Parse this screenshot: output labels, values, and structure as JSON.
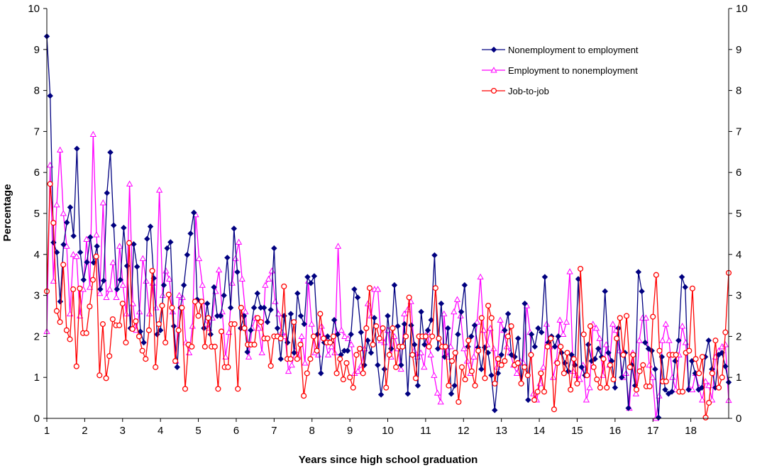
{
  "chart_data": {
    "type": "line",
    "title": "",
    "xlabel": "Years since high school graduation",
    "ylabel": "Percentage",
    "xlim": [
      1,
      19
    ],
    "ylim": [
      0,
      10
    ],
    "x_ticks": [
      "1",
      "2",
      "3",
      "4",
      "5",
      "6",
      "7",
      "8",
      "9",
      "10",
      "11",
      "12",
      "13",
      "14",
      "15",
      "16",
      "17",
      "18"
    ],
    "y_ticks": [
      "0",
      "1",
      "2",
      "3",
      "4",
      "5",
      "6",
      "7",
      "8",
      "9",
      "10"
    ],
    "grid": false,
    "legend_position": "top-right",
    "series": [
      {
        "name": "Nonemployment to employment",
        "color": "#000080",
        "marker": "diamond",
        "values": [
          9.32,
          7.87,
          4.29,
          4.05,
          2.85,
          4.24,
          4.78,
          5.15,
          4.45,
          6.58,
          4.05,
          3.38,
          3.81,
          4.42,
          3.8,
          4.2,
          3.15,
          3.36,
          5.5,
          6.49,
          4.71,
          3.15,
          3.38,
          4.65,
          3.72,
          2.2,
          4.25,
          3.7,
          2.12,
          1.85,
          4.38,
          4.68,
          3.42,
          2.05,
          2.15,
          3.25,
          4.15,
          4.3,
          2.25,
          1.25,
          2.7,
          3.25,
          3.99,
          4.51,
          5.02,
          2.9,
          2.85,
          2.2,
          2.8,
          2.05,
          3.2,
          2.5,
          2.5,
          3.0,
          3.92,
          2.7,
          4.63,
          3.57,
          2.2,
          2.5,
          1.62,
          2.15,
          2.7,
          3.05,
          2.7,
          2.7,
          2.35,
          2.65,
          4.15,
          2.2,
          1.45,
          2.5,
          1.85,
          2.55,
          1.6,
          3.05,
          2.5,
          2.3,
          3.45,
          3.3,
          3.47,
          2.05,
          1.1,
          1.85,
          2.0,
          1.85,
          2.4,
          2.05,
          1.55,
          1.65,
          1.65,
          2.05,
          3.15,
          2.95,
          2.1,
          1.3,
          1.9,
          1.6,
          2.45,
          1.3,
          0.58,
          1.2,
          2.5,
          1.7,
          3.25,
          2.25,
          1.3,
          2.3,
          0.6,
          2.27,
          1.8,
          0.8,
          2.6,
          1.8,
          2.15,
          2.4,
          3.98,
          1.7,
          2.8,
          1.5,
          2.2,
          0.6,
          0.8,
          2.05,
          2.6,
          3.25,
          1.75,
          2.0,
          2.27,
          1.73,
          1.2,
          1.73,
          1.6,
          1.05,
          0.2,
          1.1,
          1.55,
          2.15,
          2.55,
          1.55,
          1.5,
          1.95,
          0.85,
          2.8,
          0.45,
          2.05,
          1.75,
          2.2,
          2.1,
          3.45,
          1.85,
          2.0,
          1.75,
          2.0,
          1.6,
          1.35,
          1.15,
          1.55,
          1.3,
          3.4,
          1.25,
          1.05,
          1.8,
          1.4,
          1.45,
          1.7,
          1.5,
          3.1,
          1.6,
          1.4,
          0.75,
          2.2,
          1.0,
          1.6,
          0.25,
          1.3,
          0.8,
          3.57,
          3.1,
          1.85,
          1.7,
          1.65,
          1.2,
          0.02,
          1.5,
          0.7,
          0.6,
          0.65,
          1.4,
          1.9,
          3.45,
          3.2,
          0.7,
          1.4,
          1.1,
          0.7,
          0.75,
          1.5,
          1.9,
          1.2,
          0.75,
          1.55,
          1.6,
          1.27,
          0.88
        ]
      },
      {
        "name": "Employment to nonemployment",
        "color": "#FF00FF",
        "marker": "triangle",
        "values": [
          2.12,
          6.18,
          3.35,
          5.21,
          6.55,
          5.0,
          4.2,
          2.55,
          4.0,
          3.95,
          2.5,
          3.15,
          4.37,
          3.2,
          6.93,
          4.48,
          3.05,
          5.26,
          2.95,
          3.15,
          3.8,
          2.95,
          4.2,
          3.25,
          2.55,
          5.72,
          2.8,
          2.15,
          2.6,
          3.9,
          3.35,
          2.55,
          3.3,
          2.7,
          5.57,
          3.0,
          3.6,
          3.4,
          2.6,
          1.4,
          3.0,
          2.95,
          1.85,
          1.6,
          2.25,
          4.97,
          3.9,
          3.25,
          2.3,
          2.2,
          2.45,
          3.1,
          3.62,
          2.6,
          1.5,
          2.1,
          3.3,
          3.9,
          4.3,
          3.4,
          2.6,
          1.5,
          2.2,
          2.45,
          2.2,
          1.6,
          3.25,
          3.4,
          3.6,
          2.85,
          2.55,
          2.1,
          2.0,
          1.15,
          1.3,
          1.65,
          1.5,
          2.0,
          1.35,
          3.35,
          2.3,
          1.6,
          1.55,
          2.25,
          1.95,
          1.55,
          1.75,
          1.6,
          4.2,
          2.15,
          2.0,
          1.95,
          1.8,
          1.1,
          1.15,
          1.3,
          1.7,
          2.8,
          2.5,
          3.15,
          3.15,
          1.9,
          1.85,
          2.15,
          1.5,
          2.0,
          1.7,
          1.2,
          2.55,
          2.65,
          2.85,
          1.65,
          1.5,
          1.6,
          1.25,
          2.1,
          1.55,
          1.05,
          0.62,
          0.4,
          2.55,
          1.5,
          1.75,
          2.6,
          2.9,
          2.5,
          1.7,
          1.4,
          1.1,
          1.5,
          2.35,
          3.45,
          2.15,
          1.8,
          2.2,
          1.7,
          1.25,
          2.4,
          2.15,
          1.75,
          1.6,
          1.3,
          1.1,
          1.4,
          1.35,
          2.75,
          2.1,
          0.6,
          0.45,
          0.85,
          1.25,
          2.3,
          1.75,
          1.0,
          1.4,
          2.4,
          2.05,
          2.35,
          3.58,
          1.15,
          1.05,
          0.95,
          1.3,
          0.45,
          0.75,
          2.3,
          2.2,
          1.95,
          1.05,
          1.8,
          1.3,
          2.3,
          2.15,
          1.65,
          1.0,
          1.1,
          0.25,
          1.6,
          0.6,
          1.9,
          2.45,
          2.45,
          1.3,
          1.0,
          0.0,
          0.55,
          1.9,
          2.3,
          1.9,
          1.0,
          0.7,
          1.55,
          2.25,
          1.85,
          0.75,
          0.7,
          1.1,
          0.75,
          0.45,
          0.9,
          0.8,
          0.45,
          1.5,
          1.65,
          1.75,
          1.8,
          0.44
        ]
      },
      {
        "name": "Job-to-job",
        "color": "#FF0000",
        "marker": "circle",
        "values": [
          3.1,
          5.72,
          4.77,
          2.62,
          2.35,
          3.75,
          2.15,
          1.93,
          3.15,
          1.27,
          3.17,
          2.08,
          2.08,
          2.73,
          3.38,
          3.95,
          1.05,
          2.3,
          0.98,
          1.52,
          2.42,
          2.27,
          2.27,
          2.8,
          1.85,
          4.28,
          2.18,
          2.37,
          2.0,
          1.65,
          1.45,
          2.15,
          3.6,
          1.25,
          2.3,
          2.75,
          1.85,
          3.02,
          2.7,
          1.4,
          2.15,
          2.7,
          0.72,
          1.8,
          1.75,
          2.85,
          2.5,
          2.85,
          1.75,
          2.45,
          1.75,
          1.75,
          0.72,
          2.12,
          1.25,
          1.25,
          2.3,
          2.3,
          0.72,
          2.7,
          2.2,
          1.8,
          1.8,
          1.8,
          2.45,
          2.35,
          1.95,
          1.95,
          1.28,
          2.0,
          2.0,
          1.95,
          3.22,
          1.45,
          1.45,
          2.35,
          1.45,
          1.8,
          0.55,
          1.1,
          1.45,
          2.0,
          1.65,
          2.55,
          1.95,
          1.85,
          1.85,
          2.0,
          1.1,
          1.45,
          0.95,
          1.35,
          1.0,
          0.75,
          1.55,
          1.7,
          1.1,
          2.2,
          3.18,
          1.8,
          2.25,
          1.95,
          2.2,
          0.75,
          1.55,
          2.2,
          1.25,
          1.75,
          1.75,
          2.0,
          2.95,
          1.55,
          0.98,
          2.0,
          2.0,
          2.0,
          1.75,
          2.0,
          3.18,
          1.95,
          1.75,
          1.75,
          0.8,
          1.4,
          1.6,
          0.4,
          1.25,
          0.95,
          1.9,
          1.15,
          0.8,
          1.65,
          2.45,
          0.98,
          2.75,
          2.45,
          0.85,
          1.45,
          1.3,
          1.4,
          2.0,
          2.25,
          1.3,
          1.35,
          0.85,
          1.25,
          1.05,
          1.55,
          0.45,
          0.65,
          1.1,
          0.65,
          1.75,
          1.95,
          0.22,
          1.35,
          1.75,
          1.1,
          1.6,
          0.7,
          1.45,
          0.85,
          3.65,
          2.05,
          1.05,
          2.25,
          1.25,
          0.95,
          0.75,
          1.45,
          0.75,
          1.3,
          0.95,
          1.95,
          2.45,
          1.55,
          2.5,
          1.25,
          1.55,
          0.7,
          1.15,
          1.3,
          0.78,
          0.78,
          2.48,
          3.5,
          1.65,
          0.9,
          0.9,
          1.55,
          1.55,
          1.55,
          0.65,
          0.65,
          1.6,
          1.65,
          3.17,
          1.45,
          1.1,
          1.5,
          0.02,
          0.38,
          1.1,
          1.9,
          0.75,
          1.0,
          2.1,
          3.55
        ]
      }
    ]
  }
}
